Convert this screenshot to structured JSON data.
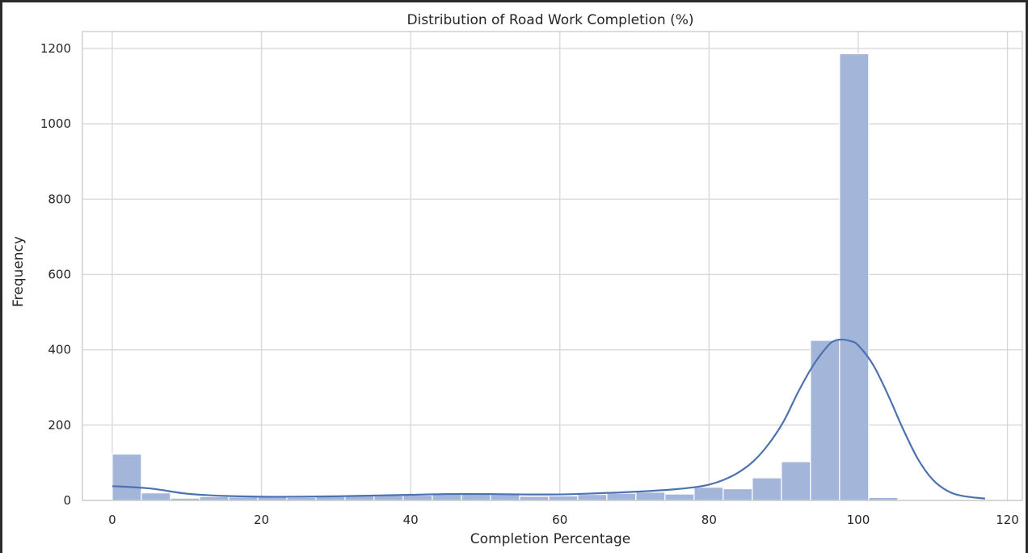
{
  "chart_data": {
    "type": "bar",
    "title": "Distribution of Road Work Completion (%)",
    "xlabel": "Completion Percentage",
    "ylabel": "Frequency",
    "xlim": [
      -4,
      122
    ],
    "ylim": [
      0,
      1245
    ],
    "xticks": [
      0,
      20,
      40,
      60,
      80,
      100,
      120
    ],
    "yticks": [
      0,
      200,
      400,
      600,
      800,
      1000,
      1200
    ],
    "grid": true,
    "bin_width": 3.9,
    "bins": [
      {
        "x0": 0.0,
        "count": 123
      },
      {
        "x0": 3.9,
        "count": 20
      },
      {
        "x0": 7.8,
        "count": 6
      },
      {
        "x0": 11.7,
        "count": 10
      },
      {
        "x0": 15.6,
        "count": 9
      },
      {
        "x0": 19.5,
        "count": 9
      },
      {
        "x0": 23.4,
        "count": 8
      },
      {
        "x0": 27.3,
        "count": 10
      },
      {
        "x0": 31.2,
        "count": 12
      },
      {
        "x0": 35.1,
        "count": 13
      },
      {
        "x0": 39.0,
        "count": 14
      },
      {
        "x0": 42.9,
        "count": 17
      },
      {
        "x0": 46.8,
        "count": 17
      },
      {
        "x0": 50.7,
        "count": 16
      },
      {
        "x0": 54.6,
        "count": 11
      },
      {
        "x0": 58.5,
        "count": 12
      },
      {
        "x0": 62.4,
        "count": 16
      },
      {
        "x0": 66.3,
        "count": 19
      },
      {
        "x0": 70.2,
        "count": 22
      },
      {
        "x0": 74.1,
        "count": 17
      },
      {
        "x0": 78.0,
        "count": 35
      },
      {
        "x0": 81.9,
        "count": 31
      },
      {
        "x0": 85.8,
        "count": 60
      },
      {
        "x0": 89.7,
        "count": 103
      },
      {
        "x0": 93.6,
        "count": 425
      },
      {
        "x0": 97.5,
        "count": 1186
      },
      {
        "x0": 101.4,
        "count": 8
      }
    ],
    "kde": {
      "x": [
        0,
        5,
        10,
        15,
        20,
        25,
        30,
        35,
        40,
        45,
        50,
        55,
        60,
        65,
        70,
        75,
        78,
        80,
        82,
        84,
        86,
        88,
        90,
        92,
        94,
        96,
        97,
        98,
        99,
        100,
        102,
        104,
        106,
        108,
        110,
        112,
        114,
        117
      ],
      "y": [
        38,
        32,
        18,
        12,
        10,
        10,
        11,
        13,
        15,
        17,
        17,
        16,
        16,
        19,
        23,
        29,
        35,
        42,
        55,
        75,
        105,
        150,
        210,
        290,
        360,
        412,
        425,
        427,
        423,
        412,
        360,
        280,
        190,
        110,
        55,
        25,
        12,
        5
      ]
    },
    "colors": {
      "bar_fill": "#a3b5d8",
      "bar_stroke": "#ffffff",
      "line": "#4c72b0",
      "grid": "#d9d9d9",
      "spine": "#cccccc",
      "background": "#ffffff"
    }
  }
}
